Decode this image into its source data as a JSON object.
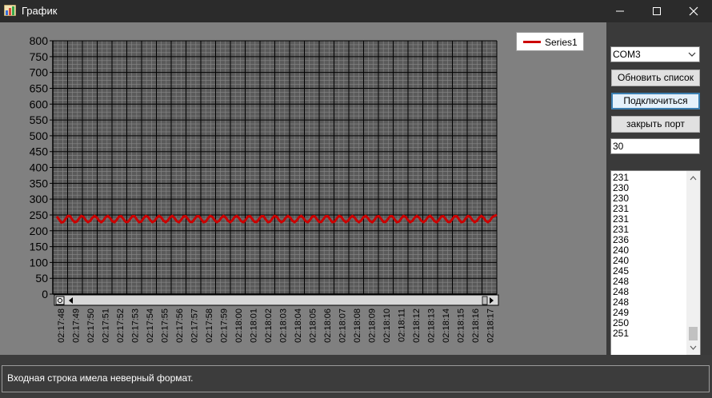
{
  "window": {
    "title": "График",
    "icon": "chart-app-icon",
    "controls": [
      "minimize-icon",
      "maximize-icon",
      "close-icon"
    ]
  },
  "chart_data": {
    "type": "line",
    "x_tick_labels": [
      "02:17:48",
      "02:17:49",
      "02:17:50",
      "02:17:51",
      "02:17:52",
      "02:17:53",
      "02:17:54",
      "02:17:55",
      "02:17:56",
      "02:17:57",
      "02:17:58",
      "02:17:59",
      "02:18:00",
      "02:18:01",
      "02:18:02",
      "02:18:03",
      "02:18:04",
      "02:18:05",
      "02:18:06",
      "02:18:07",
      "02:18:08",
      "02:18:09",
      "02:18:10",
      "02:18:11",
      "02:18:12",
      "02:18:13",
      "02:18:14",
      "02:18:15",
      "02:18:16",
      "02:18:17"
    ],
    "y_tick_labels": [
      "800",
      "750",
      "700",
      "650",
      "600",
      "550",
      "500",
      "450",
      "400",
      "350",
      "300",
      "250",
      "200",
      "150",
      "100",
      "50",
      "0"
    ],
    "ylim": [
      0,
      800
    ],
    "y_major_step": 50,
    "grid": true,
    "legend_position": "top-right",
    "series": [
      {
        "name": "Series1",
        "color": "#cc0000",
        "values": [
          245,
          236,
          226,
          228,
          238,
          247,
          246,
          235,
          227,
          229,
          239,
          247,
          244,
          234,
          227,
          231,
          241,
          247,
          242,
          232,
          227,
          233,
          243,
          247,
          240,
          230,
          227,
          235,
          245,
          246,
          237,
          228,
          228,
          237,
          246,
          246,
          236,
          227,
          229,
          239,
          247,
          244,
          234,
          227,
          231,
          241,
          247,
          242,
          232,
          227,
          233,
          243,
          247,
          240,
          230,
          227,
          235,
          245,
          246,
          237,
          228,
          228,
          237,
          246,
          246,
          236,
          227,
          229,
          239,
          247,
          244,
          234,
          227,
          231,
          241,
          247,
          242,
          232,
          227,
          233,
          243,
          247,
          240,
          230,
          227,
          235,
          245,
          246,
          237,
          228,
          228,
          237,
          246,
          246,
          236,
          227,
          229,
          239,
          247,
          244,
          234,
          227,
          231,
          241,
          247,
          242,
          232,
          227,
          233,
          243,
          247,
          240,
          230,
          227,
          235,
          245,
          246,
          237,
          228,
          228,
          237,
          246,
          246,
          236,
          227,
          229,
          239,
          247,
          244,
          234,
          227,
          231,
          241,
          247,
          242,
          232,
          227,
          233,
          243,
          247,
          240,
          230,
          227,
          235,
          245,
          246,
          237,
          228,
          228,
          237,
          246,
          246,
          236,
          227,
          229,
          239,
          247,
          244,
          234,
          227,
          231,
          241,
          247,
          242,
          232,
          227,
          233,
          243,
          247,
          240,
          230,
          227,
          235,
          245,
          246,
          237,
          228,
          228,
          237,
          246,
          246,
          236,
          227,
          229,
          239,
          247,
          244,
          234,
          227,
          231,
          241,
          247,
          242,
          232,
          227,
          233,
          243,
          247,
          250
        ]
      }
    ]
  },
  "controls": {
    "port_select": "COM3",
    "refresh_button": "Обновить список",
    "connect_button": "Подключиться",
    "close_port_button": "закрыть порт",
    "interval_value": "30"
  },
  "received_values": [
    "231",
    "230",
    "230",
    "231",
    "231",
    "231",
    "236",
    "240",
    "240",
    "245",
    "248",
    "248",
    "248",
    "249",
    "250",
    "251"
  ],
  "status_message": "Входная строка имела неверный формат."
}
